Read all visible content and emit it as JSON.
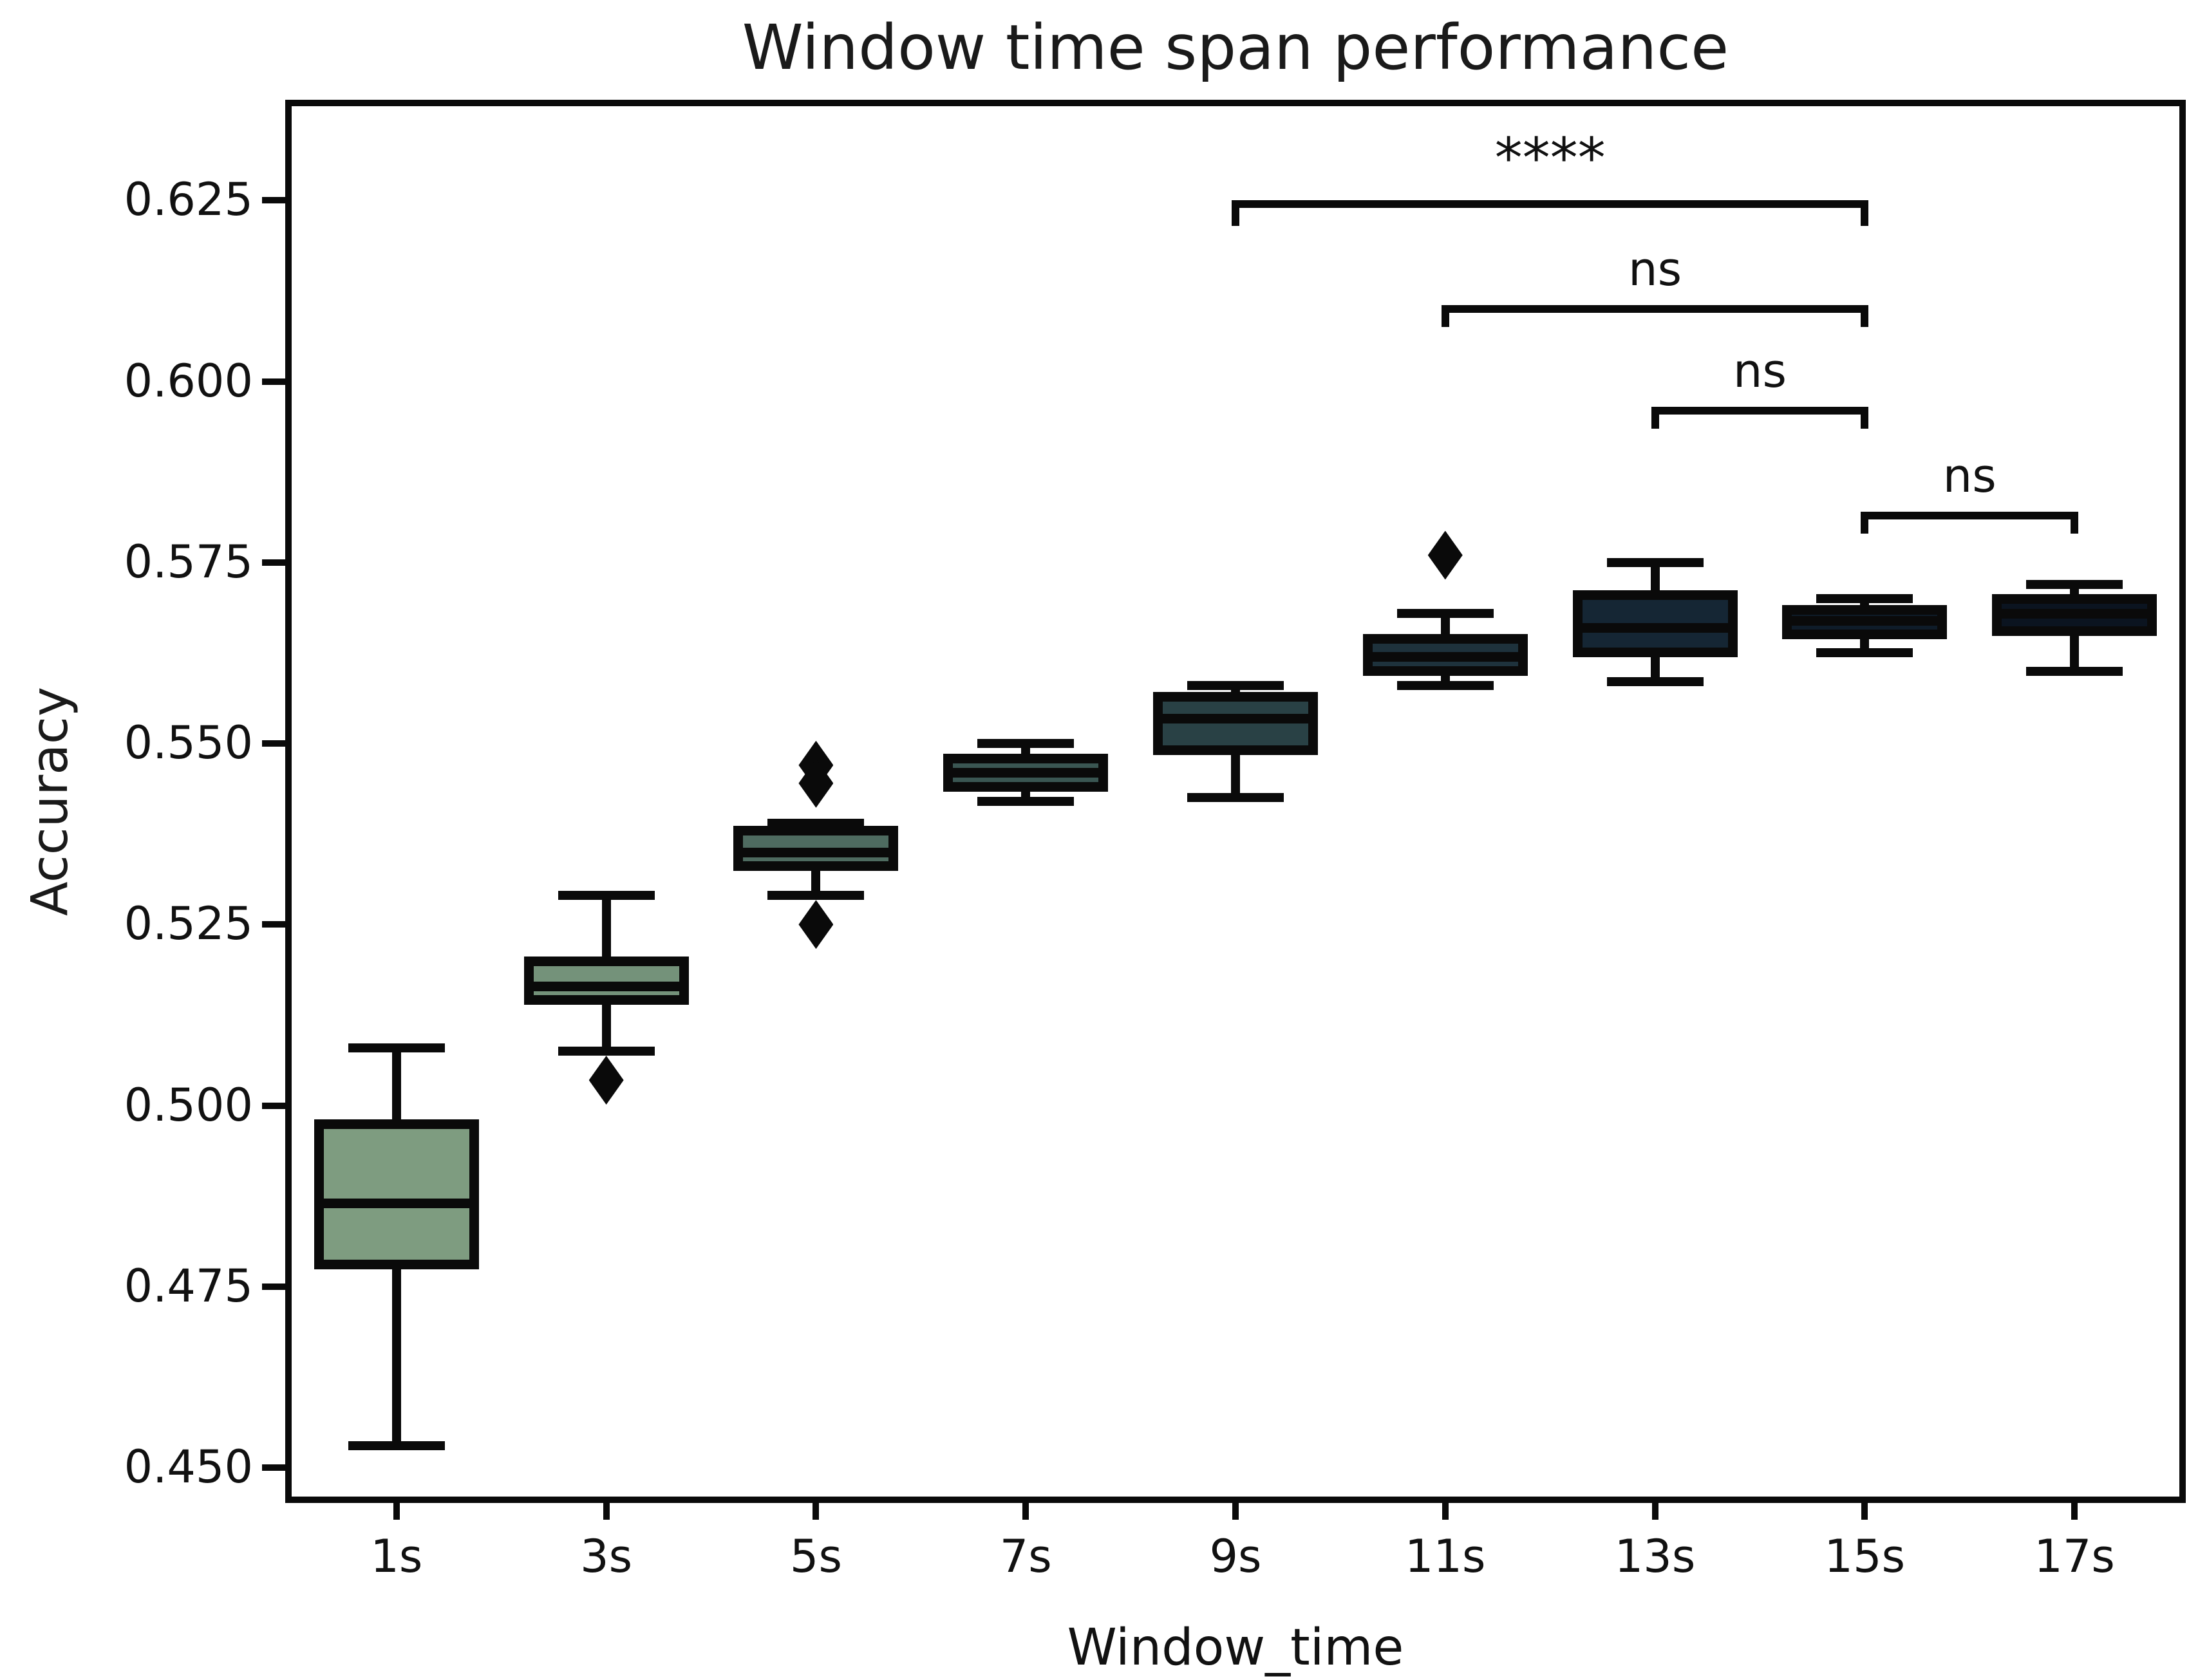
{
  "chart_data": {
    "type": "box",
    "title": "Window time span performance",
    "xlabel": "Window_time",
    "ylabel": "Accuracy",
    "ylim": [
      0.446,
      0.638
    ],
    "yticks": [
      "0.625",
      "0.600",
      "0.575",
      "0.550",
      "0.525",
      "0.500",
      "0.475",
      "0.450"
    ],
    "grid": false,
    "legend": "none",
    "categories": [
      "1s",
      "3s",
      "5s",
      "7s",
      "9s",
      "11s",
      "13s",
      "15s",
      "17s"
    ],
    "boxes": [
      {
        "label": "1s",
        "color": "#7E9C80",
        "whisker_low": 0.453,
        "q1": 0.478,
        "median": 0.4865,
        "q3": 0.4975,
        "whisker_high": 0.508,
        "outliers": []
      },
      {
        "label": "3s",
        "color": "#74927A",
        "whisker_low": 0.5075,
        "q1": 0.5145,
        "median": 0.5165,
        "q3": 0.52,
        "whisker_high": 0.529,
        "outliers": [
          0.5035
        ]
      },
      {
        "label": "5s",
        "color": "#4E6B60",
        "whisker_low": 0.529,
        "q1": 0.533,
        "median": 0.535,
        "q3": 0.538,
        "whisker_high": 0.539,
        "outliers": [
          0.547,
          0.5445,
          0.525
        ]
      },
      {
        "label": "7s",
        "color": "#3A5652",
        "whisker_low": 0.542,
        "q1": 0.544,
        "median": 0.546,
        "q3": 0.548,
        "whisker_high": 0.55,
        "outliers": []
      },
      {
        "label": "9s",
        "color": "#294145",
        "whisker_low": 0.5425,
        "q1": 0.549,
        "median": 0.5535,
        "q3": 0.5565,
        "whisker_high": 0.558,
        "outliers": []
      },
      {
        "label": "11s",
        "color": "#1E323C",
        "whisker_low": 0.558,
        "q1": 0.56,
        "median": 0.562,
        "q3": 0.5645,
        "whisker_high": 0.568,
        "outliers": [
          0.576
        ]
      },
      {
        "label": "13s",
        "color": "#152634",
        "whisker_low": 0.5585,
        "q1": 0.5625,
        "median": 0.566,
        "q3": 0.5705,
        "whisker_high": 0.575,
        "outliers": []
      },
      {
        "label": "15s",
        "color": "#0F1C29",
        "whisker_low": 0.5625,
        "q1": 0.565,
        "median": 0.567,
        "q3": 0.5685,
        "whisker_high": 0.57,
        "outliers": []
      },
      {
        "label": "17s",
        "color": "#0B1420",
        "whisker_low": 0.56,
        "q1": 0.5655,
        "median": 0.568,
        "q3": 0.57,
        "whisker_high": 0.572,
        "outliers": []
      }
    ],
    "annotations": [
      {
        "from": "9s",
        "to": "15s",
        "label": "****",
        "bar_y": 0.625,
        "tip_y": 0.6215
      },
      {
        "from": "11s",
        "to": "15s",
        "label": "ns",
        "bar_y": 0.6105,
        "tip_y": 0.6075
      },
      {
        "from": "13s",
        "to": "15s",
        "label": "ns",
        "bar_y": 0.5965,
        "tip_y": 0.5935
      },
      {
        "from": "15s",
        "to": "17s",
        "label": "ns",
        "bar_y": 0.582,
        "tip_y": 0.579
      }
    ]
  }
}
